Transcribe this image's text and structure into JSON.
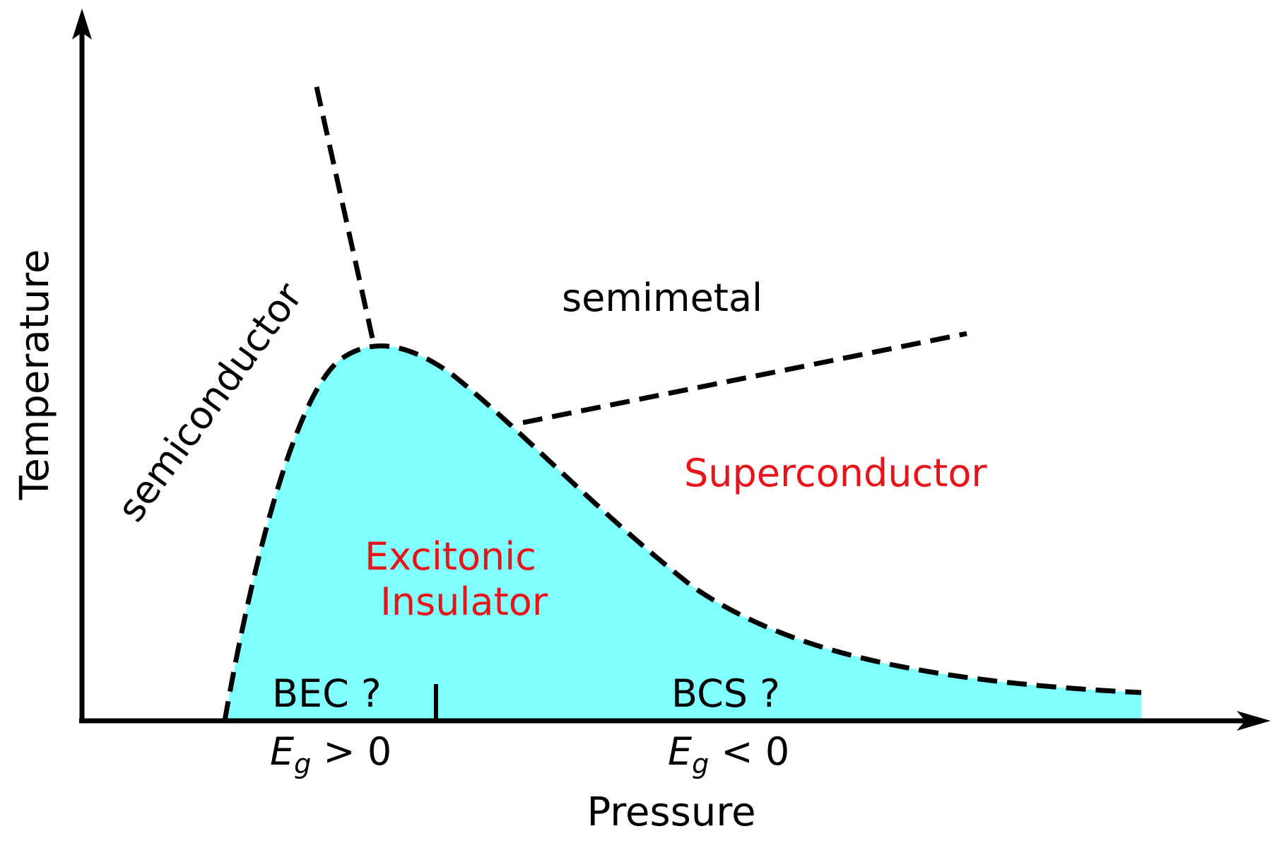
{
  "axes": {
    "y_label": "Temperature",
    "x_label": "Pressure"
  },
  "regions": {
    "semiconductor": "semiconductor",
    "semimetal": "semimetal",
    "superconductor": "Superconductor",
    "excitonic_line1": "Excitonic",
    "excitonic_line2": "Insulator",
    "bec": "BEC ?",
    "bcs": "BCS ?"
  },
  "gap_labels": {
    "left": {
      "symbol": "E",
      "subscript": "g",
      "relation": " > 0"
    },
    "right": {
      "symbol": "E",
      "subscript": "g",
      "relation": " < 0"
    }
  },
  "colors": {
    "fill": "#80ffff",
    "region_text": "#000000",
    "phase_text": "#e8141a",
    "lines": "#000000"
  }
}
